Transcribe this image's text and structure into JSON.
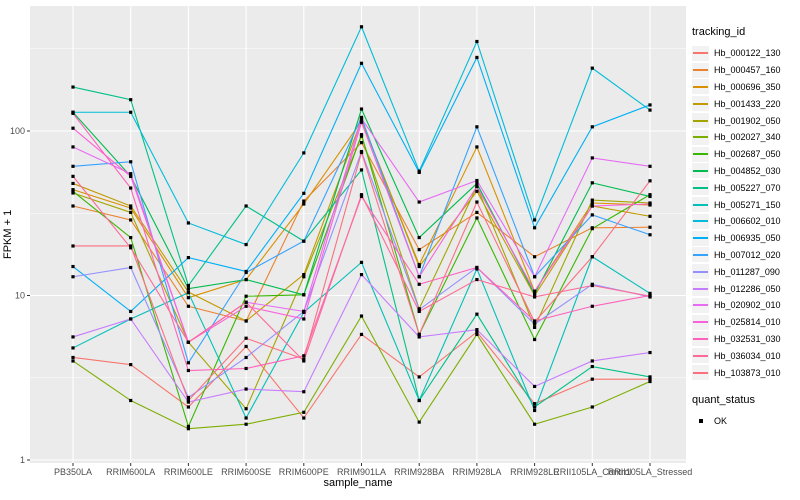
{
  "chart_data": {
    "type": "line",
    "title": "",
    "xlabel": "sample_name",
    "ylabel": "FPKM + 1",
    "y_scale": "log10",
    "ylim": [
      1,
      577
    ],
    "y_ticks": [
      1,
      10,
      100
    ],
    "y_minor_ticks": [
      3.162,
      31.62,
      316.2
    ],
    "grid": "grey-panel-white-gridlines",
    "legend_position": "right",
    "point_marker": "filled-square",
    "point_color": "#000000",
    "categories": [
      "PB350LA",
      "RRIM600LA",
      "RRIM600LE",
      "RRIM600SE",
      "RRIM600PE",
      "RRIM901LA",
      "RRIM928BA",
      "RRIM928LA",
      "RRIM928LE",
      "RRII105LA_Control",
      "RRII105LA_Stressed"
    ],
    "series": [
      {
        "name": "Hb_000122_130",
        "color": "#F8766D",
        "values": [
          4.2,
          3.8,
          2.1,
          4.9,
          1.8,
          5.8,
          3.2,
          6.0,
          2.2,
          3.1,
          3.1
        ]
      },
      {
        "name": "Hb_000457_160",
        "color": "#EA8331",
        "values": [
          35,
          28.8,
          8.6,
          7.0,
          37.5,
          85,
          19,
          32,
          17.2,
          25.8,
          26
        ]
      },
      {
        "name": "Hb_000696_350",
        "color": "#D89000",
        "values": [
          44,
          34,
          9.7,
          12.5,
          36,
          115,
          15.4,
          80,
          10.6,
          36.5,
          35.5
        ]
      },
      {
        "name": "Hb_001433_220",
        "color": "#C09B00",
        "values": [
          48,
          35,
          10.5,
          7.0,
          13.4,
          117,
          15,
          43,
          10,
          35,
          30.3
        ]
      },
      {
        "name": "Hb_001902_050",
        "color": "#A3A500",
        "values": [
          42,
          32,
          5.2,
          2.05,
          13.0,
          93,
          8.3,
          46,
          6.4,
          38,
          36.5
        ]
      },
      {
        "name": "Hb_002027_340",
        "color": "#7CAE00",
        "values": [
          4.0,
          2.3,
          1.55,
          1.65,
          1.95,
          7.5,
          1.7,
          5.8,
          1.65,
          2.1,
          3.0
        ]
      },
      {
        "name": "Hb_002687_050",
        "color": "#39B600",
        "values": [
          43,
          22.5,
          1.6,
          9.9,
          10.1,
          95,
          5.8,
          29.6,
          5.4,
          25.5,
          41
        ]
      },
      {
        "name": "Hb_004852_030",
        "color": "#00BB4E",
        "values": [
          130,
          53,
          11.0,
          12.5,
          10.1,
          136,
          22.5,
          48,
          10.2,
          48.4,
          40
        ]
      },
      {
        "name": "Hb_005227_070",
        "color": "#00C087",
        "values": [
          185,
          155,
          11.5,
          35,
          21.4,
          58,
          2.3,
          7.7,
          2.1,
          3.7,
          3.2
        ]
      },
      {
        "name": "Hb_005271_150",
        "color": "#00C0B8",
        "values": [
          4.8,
          7.2,
          10.4,
          1.8,
          7.9,
          15.9,
          2.3,
          14.5,
          2.0,
          17.2,
          10.3
        ]
      },
      {
        "name": "Hb_006602_010",
        "color": "#00BCD8",
        "values": [
          130,
          130,
          27.6,
          20.4,
          73.6,
          430,
          57,
          350,
          28.8,
          241,
          134
        ]
      },
      {
        "name": "Hb_006935_050",
        "color": "#00B0F6",
        "values": [
          15,
          8.0,
          17.0,
          14.0,
          41.8,
          258,
          56,
          280,
          25.8,
          106,
          144
        ]
      },
      {
        "name": "Hb_007012_020",
        "color": "#35A2FF",
        "values": [
          61,
          65,
          3.9,
          13.8,
          21.4,
          121,
          13,
          106,
          13,
          30.9,
          23.4
        ]
      },
      {
        "name": "Hb_011287_090",
        "color": "#9590FF",
        "values": [
          13,
          14.8,
          2.4,
          4.2,
          8.0,
          75,
          8.2,
          14.8,
          6.7,
          11.7,
          9.8
        ]
      },
      {
        "name": "Hb_012286_050",
        "color": "#C77CFF",
        "values": [
          5.6,
          7.2,
          2.25,
          2.7,
          2.6,
          13.4,
          5.6,
          6.2,
          2.8,
          4.0,
          4.5
        ]
      },
      {
        "name": "Hb_020902_010",
        "color": "#E76BF3",
        "values": [
          80,
          55,
          5.2,
          9.1,
          8.0,
          119,
          37,
          50,
          13,
          68.6,
          61
        ]
      },
      {
        "name": "Hb_025814_010",
        "color": "#FA62DB",
        "values": [
          104,
          53,
          5.2,
          8.6,
          7.2,
          113,
          13,
          46,
          10.6,
          35,
          36
        ]
      },
      {
        "name": "Hb_032531_030",
        "color": "#FF62BC",
        "values": [
          128,
          45,
          3.5,
          3.6,
          4.3,
          40,
          11.7,
          14.8,
          7.0,
          8.6,
          10
        ]
      },
      {
        "name": "Hb_036034_010",
        "color": "#FF6A98",
        "values": [
          53,
          19.5,
          5.2,
          9.1,
          4.0,
          41,
          8.0,
          12.5,
          9.8,
          11.5,
          9.9
        ]
      },
      {
        "name": "Hb_103873_010",
        "color": "#FC6F81",
        "values": [
          20,
          20,
          2.3,
          5.5,
          4.1,
          74,
          5.8,
          37,
          6.9,
          17.2,
          49.8
        ]
      }
    ]
  },
  "legend": {
    "tracking_title": "tracking_id",
    "quant_title": "quant_status",
    "quant_items": [
      {
        "label": "OK",
        "marker": "black-square"
      }
    ]
  },
  "style": {
    "panel_bg": "#EBEBEB",
    "grid_color": "#FFFFFF",
    "tick_text_color": "#4D4D4D",
    "tick_mark_color": "#333333",
    "legend_key_bg": "#F2F2F2"
  }
}
